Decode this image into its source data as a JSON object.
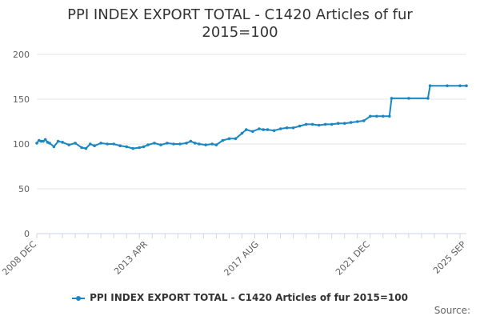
{
  "chart_data": {
    "type": "line",
    "title": "PPI INDEX EXPORT TOTAL - C1420 Articles of fur",
    "subtitle": "2015=100",
    "xlabel": "",
    "ylabel": "",
    "ylim": [
      0,
      200
    ],
    "yticks": [
      0,
      50,
      100,
      150,
      200
    ],
    "xticks": [
      "2008 DEC",
      "2013 APR",
      "2017 AUG",
      "2021 DEC",
      "2025 SEP"
    ],
    "xrange": [
      "2008 DEC",
      "2025 SEP"
    ],
    "grid": "horizontal",
    "legend_position": "bottom",
    "series": [
      {
        "name": "PPI INDEX EXPORT TOTAL - C1420 Articles of fur 2015=100",
        "color": "#1a87c2",
        "x": [
          "2008-12",
          "2009-01",
          "2009-02",
          "2009-03",
          "2009-04",
          "2009-05",
          "2009-06",
          "2009-08",
          "2009-10",
          "2009-12",
          "2010-03",
          "2010-06",
          "2010-09",
          "2010-11",
          "2011-01",
          "2011-03",
          "2011-06",
          "2011-09",
          "2011-12",
          "2012-03",
          "2012-06",
          "2012-09",
          "2012-12",
          "2013-02",
          "2013-04",
          "2013-07",
          "2013-10",
          "2014-01",
          "2014-04",
          "2014-07",
          "2014-10",
          "2014-12",
          "2015-02",
          "2015-04",
          "2015-07",
          "2015-10",
          "2015-12",
          "2016-03",
          "2016-06",
          "2016-09",
          "2016-12",
          "2017-02",
          "2017-05",
          "2017-08",
          "2017-10",
          "2017-12",
          "2018-03",
          "2018-06",
          "2018-09",
          "2018-12",
          "2019-03",
          "2019-06",
          "2019-09",
          "2019-12",
          "2020-03",
          "2020-06",
          "2020-09",
          "2020-12",
          "2021-03",
          "2021-06",
          "2021-09",
          "2021-12",
          "2022-03",
          "2022-06",
          "2022-09",
          "2022-10",
          "2023-06",
          "2024-03",
          "2024-04",
          "2024-12",
          "2025-06",
          "2025-09"
        ],
        "values": [
          101,
          104,
          103,
          103,
          105,
          102,
          101,
          97,
          103,
          102,
          99,
          101,
          96,
          95,
          100,
          98,
          101,
          100,
          100,
          98,
          97,
          95,
          96,
          97,
          99,
          101,
          99,
          101,
          100,
          100,
          101,
          103,
          101,
          100,
          99,
          100,
          99,
          104,
          106,
          106,
          112,
          116,
          114,
          117,
          116,
          116,
          115,
          117,
          118,
          118,
          120,
          122,
          122,
          121,
          122,
          122,
          123,
          123,
          124,
          125,
          126,
          131,
          131,
          131,
          131,
          151,
          151,
          151,
          165,
          165,
          165,
          165
        ]
      }
    ]
  },
  "source_label": "Source:"
}
